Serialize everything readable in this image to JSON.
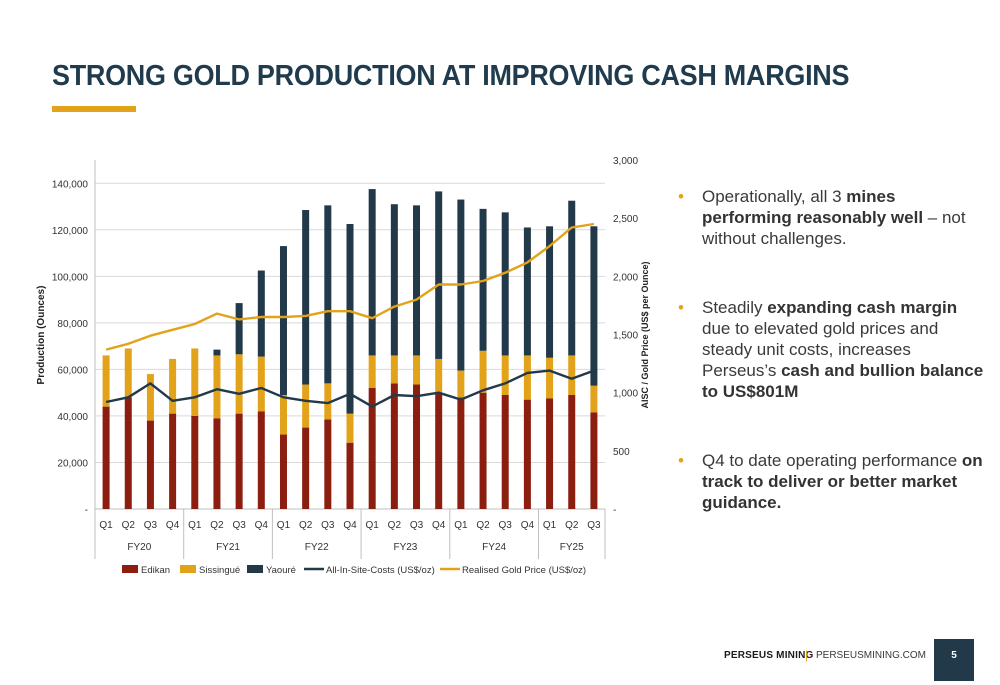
{
  "page": {
    "title": "STRONG GOLD PRODUCTION AT IMPROVING CASH MARGINS",
    "bullets": [
      {
        "parts": [
          {
            "t": "Operationally, all 3 ",
            "b": false
          },
          {
            "t": "mines performing reasonably well",
            "b": true
          },
          {
            "t": " – not without challenges.",
            "b": false
          }
        ]
      },
      {
        "parts": [
          {
            "t": "Steadily ",
            "b": false
          },
          {
            "t": "expanding cash margin",
            "b": true
          },
          {
            "t": " due to elevated gold prices and steady unit costs,  increases Perseus’s ",
            "b": false
          },
          {
            "t": "cash and bullion balance to US$801M",
            "b": true
          }
        ]
      },
      {
        "parts": [
          {
            "t": "Q4 to date operating performance ",
            "b": false
          },
          {
            "t": "on track to deliver or better market guidance.",
            "b": true
          }
        ]
      }
    ],
    "footer": {
      "brand": "PERSEUS MINING",
      "separator": "|",
      "url": "PERSEUSMINING.COM",
      "page_number": "5"
    }
  },
  "colors": {
    "edikan": "#8b1e0f",
    "sissingue": "#e2a21a",
    "yaoure": "#22394a",
    "aisc": "#22394a",
    "gold_price": "#e2a21a",
    "accent": "#e2a21a",
    "title": "#1f3b4d"
  },
  "chart_data": {
    "type": "bar",
    "stacked": true,
    "ylabel": "Production (Ounces)",
    "y2label": "AISC / Gold Price (US$ per Ounce)",
    "ylim": [
      0,
      150000
    ],
    "y2lim": [
      0,
      3000
    ],
    "yticks": [
      "-",
      "20,000",
      "40,000",
      "60,000",
      "80,000",
      "100,000",
      "120,000",
      "140,000"
    ],
    "y2ticks": [
      "-",
      "500",
      "1,000",
      "1,500",
      "2,000",
      "2,500",
      "3,000"
    ],
    "grid": true,
    "legend_position": "bottom",
    "categories": [
      "Q1",
      "Q2",
      "Q3",
      "Q4",
      "Q1",
      "Q2",
      "Q3",
      "Q4",
      "Q1",
      "Q2",
      "Q3",
      "Q4",
      "Q1",
      "Q2",
      "Q3",
      "Q4",
      "Q1",
      "Q2",
      "Q3",
      "Q4",
      "Q1",
      "Q2",
      "Q3"
    ],
    "groups": [
      {
        "label": "FY20",
        "count": 4
      },
      {
        "label": "FY21",
        "count": 4
      },
      {
        "label": "FY22",
        "count": 4
      },
      {
        "label": "FY23",
        "count": 4
      },
      {
        "label": "FY24",
        "count": 4
      },
      {
        "label": "FY25",
        "count": 3
      }
    ],
    "series": [
      {
        "name": "Edikan",
        "kind": "bar",
        "axis": "left",
        "values": [
          44000,
          48000,
          38000,
          41000,
          40000,
          39000,
          41000,
          42000,
          32000,
          35000,
          38500,
          28500,
          52000,
          54000,
          53500,
          50000,
          48000,
          50000,
          49000,
          47000,
          47500,
          49000,
          41500
        ]
      },
      {
        "name": "Sissingué",
        "kind": "bar",
        "axis": "left",
        "values": [
          22000,
          21000,
          20000,
          23500,
          29000,
          27000,
          25500,
          23500,
          17000,
          18500,
          15500,
          12500,
          14000,
          12000,
          12500,
          14500,
          11500,
          18000,
          17000,
          19000,
          17500,
          17000,
          11500
        ]
      },
      {
        "name": "Yaouré",
        "kind": "bar",
        "axis": "left",
        "values": [
          0,
          0,
          0,
          0,
          0,
          2500,
          22000,
          37000,
          64000,
          75000,
          76500,
          81500,
          71500,
          65000,
          64500,
          72000,
          73500,
          61000,
          61500,
          55000,
          56500,
          66500,
          68500
        ]
      },
      {
        "name": "All-In-Site-Costs (US$/oz)",
        "kind": "line",
        "axis": "right",
        "values": [
          920,
          960,
          1080,
          930,
          960,
          1030,
          990,
          1040,
          960,
          930,
          910,
          990,
          880,
          980,
          970,
          1000,
          940,
          1020,
          1080,
          1170,
          1190,
          1120,
          1190
        ]
      },
      {
        "name": "Realised Gold Price (US$/oz)",
        "kind": "line",
        "axis": "right",
        "values": [
          1370,
          1420,
          1490,
          1540,
          1590,
          1680,
          1630,
          1650,
          1650,
          1660,
          1700,
          1700,
          1640,
          1740,
          1800,
          1930,
          1930,
          1960,
          2030,
          2120,
          2260,
          2420,
          2450
        ]
      }
    ]
  }
}
